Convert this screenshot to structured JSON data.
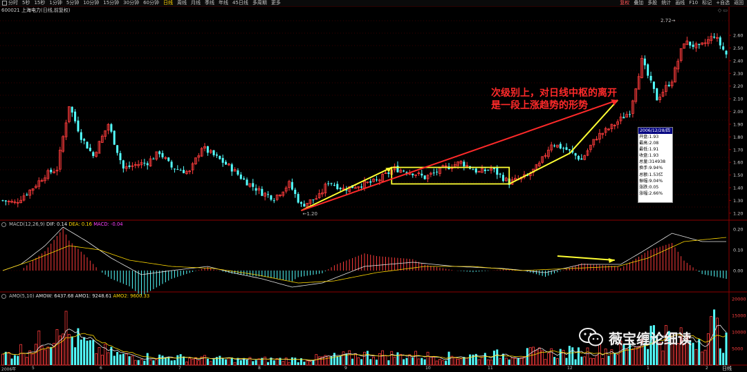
{
  "toolbar": {
    "timeframes": [
      "分时",
      "5秒",
      "15秒",
      "1分钟",
      "5分钟",
      "10分钟",
      "15分钟",
      "30分钟",
      "60分钟",
      "日线",
      "周线",
      "月线",
      "季线",
      "年线",
      "45日线",
      "多周期",
      "更多"
    ],
    "active_timeframe": "日线",
    "right_tools": [
      "复权",
      "叠加",
      "多股",
      "统计",
      "画线",
      "F10",
      "标记",
      "+自选",
      "返回"
    ],
    "highlight_tool": "复权"
  },
  "security": {
    "code": "600021",
    "name": "上海电力",
    "mode": "(日线,前复权)"
  },
  "annotation": {
    "line1": "次级别上，对日线中枢的离开",
    "line2": "是一段上涨趋势的形势"
  },
  "tooltip": {
    "date": "2006/12/28/四",
    "rows": [
      "开盘:1.93",
      "最高:2.08",
      "最低:1.91",
      "收盘:1.93",
      "总量:314938",
      "换手:9.94%",
      "总额:1.53亿",
      "振幅:9.04%",
      "涨跌:0.05",
      "涨幅:2.66%"
    ]
  },
  "macd_legend": {
    "name": "MACD(12,26,9)",
    "dif": "DIF: 0.14",
    "dea": "DEA: 0.16",
    "macd": "MACD: -0.04"
  },
  "amo_legend": {
    "name": "AMO(5,10)",
    "amow": "AMOW: 6437.68",
    "amo1": "AMO1: 9248.61",
    "amo2": "AMO2: 9600.33"
  },
  "watermark": "薇宝缠论细读",
  "footer": {
    "start": "2006年",
    "months": [
      "5",
      "6",
      "7",
      "8",
      "9",
      "10",
      "11",
      "12",
      "1",
      "2"
    ],
    "right_label": "日线"
  },
  "colors": {
    "up": "#ff3c3c",
    "down": "#54ffff",
    "annotation": "#ff2a2a",
    "trend_line": "#ffff33",
    "grid": "#8b0000"
  },
  "chart_data": [
    {
      "type": "candlestick",
      "price_range": [
        1.15,
        2.78
      ],
      "y_ticks": [
        "2.60",
        "2.50",
        "2.40",
        "2.30",
        "2.20",
        "2.10",
        "2.00",
        "1.90",
        "1.80",
        "1.70",
        "1.60",
        "1.50",
        "1.40",
        "1.30",
        "1.20"
      ],
      "labels": {
        "high_marker": "2.72",
        "low_marker": "1.20"
      },
      "pivot_box": {
        "low": 1.43,
        "high": 1.56
      },
      "anchors": [
        [
          0,
          1.3
        ],
        [
          4,
          1.28
        ],
        [
          10,
          1.4
        ],
        [
          14,
          1.5
        ],
        [
          18,
          1.55
        ],
        [
          22,
          2.05
        ],
        [
          26,
          1.8
        ],
        [
          30,
          1.65
        ],
        [
          35,
          1.9
        ],
        [
          40,
          1.55
        ],
        [
          44,
          1.58
        ],
        [
          48,
          1.6
        ],
        [
          52,
          1.68
        ],
        [
          56,
          1.56
        ],
        [
          62,
          1.52
        ],
        [
          66,
          1.72
        ],
        [
          72,
          1.62
        ],
        [
          76,
          1.55
        ],
        [
          80,
          1.46
        ],
        [
          86,
          1.36
        ],
        [
          90,
          1.32
        ],
        [
          95,
          1.43
        ],
        [
          99,
          1.26
        ],
        [
          105,
          1.33
        ],
        [
          108,
          1.45
        ],
        [
          113,
          1.39
        ],
        [
          118,
          1.42
        ],
        [
          124,
          1.45
        ],
        [
          130,
          1.55
        ],
        [
          136,
          1.52
        ],
        [
          140,
          1.48
        ],
        [
          146,
          1.55
        ],
        [
          152,
          1.6
        ],
        [
          158,
          1.52
        ],
        [
          162,
          1.55
        ],
        [
          168,
          1.44
        ],
        [
          174,
          1.49
        ],
        [
          178,
          1.58
        ],
        [
          182,
          1.75
        ],
        [
          187,
          1.7
        ],
        [
          192,
          1.62
        ],
        [
          197,
          1.8
        ],
        [
          202,
          1.88
        ],
        [
          208,
          2.0
        ],
        [
          212,
          2.4
        ],
        [
          217,
          2.1
        ],
        [
          222,
          2.25
        ],
        [
          226,
          2.55
        ],
        [
          231,
          2.5
        ],
        [
          236,
          2.6
        ],
        [
          240,
          2.45
        ]
      ]
    },
    {
      "type": "histogram",
      "name": "MACD(12,26,9)",
      "y_ticks": [
        "0.20",
        "0.10",
        "0.00"
      ],
      "dif_anchors": [
        [
          0,
          0.0
        ],
        [
          6,
          0.03
        ],
        [
          14,
          0.12
        ],
        [
          20,
          0.21
        ],
        [
          28,
          0.14
        ],
        [
          36,
          0.06
        ],
        [
          46,
          -0.02
        ],
        [
          56,
          0.0
        ],
        [
          68,
          0.02
        ],
        [
          76,
          -0.01
        ],
        [
          86,
          -0.04
        ],
        [
          96,
          -0.08
        ],
        [
          106,
          -0.06
        ],
        [
          120,
          0.02
        ],
        [
          136,
          0.04
        ],
        [
          150,
          0.02
        ],
        [
          166,
          0.01
        ],
        [
          180,
          -0.01
        ],
        [
          192,
          0.03
        ],
        [
          205,
          0.03
        ],
        [
          212,
          0.09
        ],
        [
          222,
          0.18
        ],
        [
          232,
          0.14
        ],
        [
          240,
          0.14
        ]
      ],
      "dea_anchors": [
        [
          0,
          0.0
        ],
        [
          10,
          0.05
        ],
        [
          22,
          0.12
        ],
        [
          32,
          0.1
        ],
        [
          42,
          0.05
        ],
        [
          56,
          0.02
        ],
        [
          70,
          0.01
        ],
        [
          84,
          -0.02
        ],
        [
          98,
          -0.06
        ],
        [
          110,
          -0.05
        ],
        [
          124,
          -0.01
        ],
        [
          140,
          0.02
        ],
        [
          156,
          0.02
        ],
        [
          172,
          0.0
        ],
        [
          188,
          0.01
        ],
        [
          204,
          0.02
        ],
        [
          214,
          0.06
        ],
        [
          226,
          0.14
        ],
        [
          240,
          0.16
        ]
      ]
    },
    {
      "type": "bar",
      "name": "AMO(5,10)",
      "y_ticks": [
        "20000",
        "15000",
        "10000",
        "5000"
      ],
      "anchors": [
        [
          0,
          3000
        ],
        [
          10,
          5500
        ],
        [
          17,
          10000
        ],
        [
          19,
          17000
        ],
        [
          22,
          9000
        ],
        [
          30,
          5000
        ],
        [
          40,
          2800
        ],
        [
          60,
          2200
        ],
        [
          80,
          1600
        ],
        [
          100,
          1800
        ],
        [
          120,
          3200
        ],
        [
          150,
          2600
        ],
        [
          175,
          3500
        ],
        [
          195,
          4000
        ],
        [
          208,
          5200
        ],
        [
          215,
          10000
        ],
        [
          225,
          7500
        ],
        [
          232,
          8500
        ],
        [
          236,
          12000
        ],
        [
          240,
          6400
        ]
      ]
    }
  ]
}
